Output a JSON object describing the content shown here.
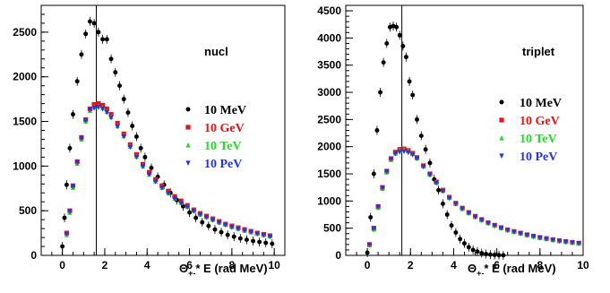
{
  "chart_data": [
    {
      "type": "scatter",
      "panel_label": "nucl",
      "xlabel": {
        "main": "Θ",
        "sub": "+-",
        "rest": "* E (rad MeV)"
      },
      "xlim": [
        -1,
        10.5
      ],
      "ylim": [
        0,
        2800
      ],
      "xticks": [
        0,
        2,
        4,
        6,
        8,
        10
      ],
      "yticks": [
        0,
        500,
        1000,
        1500,
        2000,
        2500
      ],
      "vline_x": 1.6,
      "grid": false,
      "legend_position": "right",
      "series": [
        {
          "name": "10 MeV",
          "color": "#000000",
          "marker": "circle",
          "x": [
            0,
            0.1,
            0.2,
            0.35,
            0.5,
            0.7,
            0.9,
            1.1,
            1.3,
            1.5,
            1.7,
            1.9,
            2.1,
            2.3,
            2.5,
            2.7,
            2.9,
            3.1,
            3.3,
            3.5,
            3.7,
            3.9,
            4.2,
            4.5,
            4.8,
            5.1,
            5.4,
            5.7,
            6.0,
            6.3,
            6.6,
            6.9,
            7.2,
            7.5,
            7.8,
            8.1,
            8.4,
            8.7,
            9.0,
            9.3,
            9.6,
            9.9
          ],
          "y": [
            100,
            420,
            790,
            1200,
            1580,
            1950,
            2250,
            2480,
            2620,
            2600,
            2500,
            2420,
            2420,
            2200,
            2050,
            1900,
            1750,
            1600,
            1450,
            1330,
            1200,
            1100,
            980,
            880,
            790,
            700,
            620,
            550,
            480,
            420,
            370,
            330,
            290,
            260,
            230,
            210,
            190,
            175,
            160,
            150,
            140,
            130
          ]
        },
        {
          "name": "10 GeV",
          "color": "#ee1111",
          "marker": "square",
          "x": [
            0.2,
            0.35,
            0.5,
            0.7,
            0.9,
            1.1,
            1.3,
            1.5,
            1.7,
            1.9,
            2.1,
            2.3,
            2.6,
            2.9,
            3.2,
            3.5,
            3.8,
            4.1,
            4.4,
            4.7,
            5.0,
            5.3,
            5.6,
            5.9,
            6.2,
            6.5,
            6.8,
            7.1,
            7.4,
            7.7,
            8.0,
            8.3,
            8.6,
            8.9,
            9.2,
            9.5,
            9.8
          ],
          "y": [
            250,
            500,
            780,
            1050,
            1320,
            1520,
            1640,
            1690,
            1700,
            1680,
            1640,
            1580,
            1480,
            1360,
            1240,
            1130,
            1020,
            930,
            850,
            780,
            720,
            660,
            610,
            560,
            510,
            470,
            440,
            410,
            380,
            350,
            330,
            310,
            290,
            270,
            250,
            235,
            220
          ]
        },
        {
          "name": "10 TeV",
          "color": "#22dd22",
          "marker": "triangle-up",
          "x": [
            0.2,
            0.35,
            0.5,
            0.7,
            0.9,
            1.1,
            1.3,
            1.5,
            1.7,
            1.9,
            2.1,
            2.3,
            2.6,
            2.9,
            3.2,
            3.5,
            3.8,
            4.1,
            4.4,
            4.7,
            5.0,
            5.3,
            5.6,
            5.9,
            6.2,
            6.5,
            6.8,
            7.1,
            7.4,
            7.7,
            8.0,
            8.3,
            8.6,
            8.9,
            9.2,
            9.5,
            9.8
          ],
          "y": [
            230,
            480,
            760,
            1030,
            1300,
            1500,
            1620,
            1660,
            1670,
            1650,
            1610,
            1550,
            1450,
            1340,
            1220,
            1110,
            1000,
            910,
            830,
            760,
            700,
            640,
            590,
            545,
            500,
            460,
            430,
            400,
            370,
            345,
            320,
            300,
            280,
            262,
            245,
            230,
            215
          ]
        },
        {
          "name": "10 PeV",
          "color": "#2233ee",
          "marker": "triangle-down",
          "x": [
            0.2,
            0.35,
            0.5,
            0.7,
            0.9,
            1.1,
            1.3,
            1.5,
            1.7,
            1.9,
            2.1,
            2.3,
            2.6,
            2.9,
            3.2,
            3.5,
            3.8,
            4.1,
            4.4,
            4.7,
            5.0,
            5.3,
            5.6,
            5.9,
            6.2,
            6.5,
            6.8,
            7.1,
            7.4,
            7.7,
            8.0,
            8.3,
            8.6,
            8.9,
            9.2,
            9.5,
            9.8
          ],
          "y": [
            240,
            490,
            770,
            1040,
            1310,
            1510,
            1630,
            1650,
            1660,
            1640,
            1600,
            1540,
            1440,
            1330,
            1210,
            1100,
            995,
            905,
            825,
            755,
            695,
            635,
            585,
            540,
            495,
            455,
            425,
            395,
            365,
            340,
            315,
            295,
            275,
            258,
            240,
            225,
            210
          ]
        }
      ]
    },
    {
      "type": "scatter",
      "panel_label": "triplet",
      "xlabel": {
        "main": "Θ",
        "sub": "+-",
        "rest": "* E (rad MeV)"
      },
      "xlim": [
        -1,
        10
      ],
      "ylim": [
        0,
        4600
      ],
      "xticks": [
        0,
        2,
        4,
        6,
        8,
        10
      ],
      "yticks": [
        0,
        500,
        1000,
        1500,
        2000,
        2500,
        3000,
        3500,
        4000,
        4500
      ],
      "vline_x": 1.6,
      "grid": false,
      "legend_position": "right",
      "series": [
        {
          "name": "10 MeV",
          "color": "#000000",
          "marker": "circle",
          "x": [
            0,
            0.15,
            0.3,
            0.45,
            0.6,
            0.75,
            0.9,
            1.05,
            1.2,
            1.35,
            1.5,
            1.65,
            1.8,
            1.95,
            2.1,
            2.3,
            2.5,
            2.7,
            2.9,
            3.1,
            3.3,
            3.5,
            3.7,
            3.9,
            4.1,
            4.3,
            4.5,
            4.7,
            4.9,
            5.1,
            5.3,
            5.5,
            5.7,
            5.9,
            6.1,
            6.3
          ],
          "y": [
            50,
            700,
            1500,
            2300,
            3000,
            3550,
            3900,
            4200,
            4220,
            4200,
            4050,
            3850,
            3650,
            3200,
            2950,
            2500,
            2200,
            1950,
            1700,
            1400,
            1200,
            950,
            750,
            550,
            420,
            300,
            220,
            150,
            100,
            70,
            40,
            25,
            15,
            8,
            4,
            2
          ]
        },
        {
          "name": "10 GeV",
          "color": "#ee1111",
          "marker": "square",
          "x": [
            0.1,
            0.3,
            0.5,
            0.7,
            0.9,
            1.1,
            1.3,
            1.5,
            1.7,
            1.9,
            2.1,
            2.3,
            2.6,
            2.9,
            3.2,
            3.5,
            3.8,
            4.1,
            4.4,
            4.7,
            5.0,
            5.3,
            5.6,
            5.9,
            6.2,
            6.5,
            6.8,
            7.1,
            7.4,
            7.7,
            8.0,
            8.3,
            8.6,
            8.9,
            9.2,
            9.5,
            9.8
          ],
          "y": [
            200,
            500,
            900,
            1250,
            1550,
            1780,
            1900,
            1950,
            1960,
            1930,
            1880,
            1800,
            1650,
            1500,
            1350,
            1200,
            1070,
            960,
            870,
            790,
            720,
            660,
            600,
            555,
            510,
            470,
            440,
            410,
            380,
            355,
            330,
            310,
            290,
            270,
            255,
            240,
            225
          ]
        },
        {
          "name": "10 TeV",
          "color": "#22dd22",
          "marker": "triangle-up",
          "x": [
            0.1,
            0.3,
            0.5,
            0.7,
            0.9,
            1.1,
            1.3,
            1.5,
            1.7,
            1.9,
            2.1,
            2.3,
            2.6,
            2.9,
            3.2,
            3.5,
            3.8,
            4.1,
            4.4,
            4.7,
            5.0,
            5.3,
            5.6,
            5.9,
            6.2,
            6.5,
            6.8,
            7.1,
            7.4,
            7.7,
            8.0,
            8.3,
            8.6,
            8.9,
            9.2,
            9.5,
            9.8
          ],
          "y": [
            190,
            480,
            880,
            1230,
            1530,
            1760,
            1880,
            1930,
            1950,
            1920,
            1870,
            1790,
            1640,
            1490,
            1340,
            1190,
            1060,
            950,
            860,
            780,
            710,
            650,
            595,
            550,
            505,
            465,
            435,
            405,
            375,
            350,
            325,
            305,
            285,
            265,
            250,
            235,
            220
          ]
        },
        {
          "name": "10 PeV",
          "color": "#2233ee",
          "marker": "triangle-down",
          "x": [
            0.1,
            0.3,
            0.5,
            0.7,
            0.9,
            1.1,
            1.3,
            1.5,
            1.7,
            1.9,
            2.1,
            2.3,
            2.6,
            2.9,
            3.2,
            3.5,
            3.8,
            4.1,
            4.4,
            4.7,
            5.0,
            5.3,
            5.6,
            5.9,
            6.2,
            6.5,
            6.8,
            7.1,
            7.4,
            7.7,
            8.0,
            8.3,
            8.6,
            8.9,
            9.2,
            9.5,
            9.8
          ],
          "y": [
            195,
            490,
            890,
            1240,
            1540,
            1770,
            1870,
            1900,
            1910,
            1890,
            1850,
            1780,
            1630,
            1480,
            1330,
            1180,
            1050,
            945,
            855,
            775,
            705,
            645,
            590,
            545,
            500,
            460,
            430,
            400,
            370,
            345,
            320,
            300,
            280,
            262,
            246,
            232,
            218
          ]
        }
      ]
    }
  ]
}
